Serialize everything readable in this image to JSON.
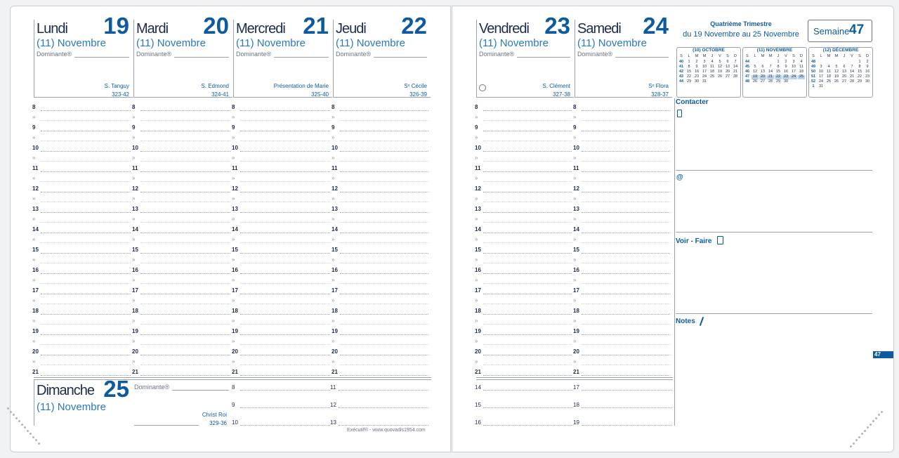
{
  "days": [
    {
      "name": "Lundi",
      "number": "19",
      "month": "(11) Novembre",
      "dominante": "Dominante®",
      "saint": "S. Tanguy",
      "code": "323-42"
    },
    {
      "name": "Mardi",
      "number": "20",
      "month": "(11) Novembre",
      "dominante": "Dominante®",
      "saint": "S. Edmond",
      "code": "324-41"
    },
    {
      "name": "Mercredi",
      "number": "21",
      "month": "(11) Novembre",
      "dominante": "Dominante®",
      "saint": "Présentation de Marie",
      "code": "325-40"
    },
    {
      "name": "Jeudi",
      "number": "22",
      "month": "(11) Novembre",
      "dominante": "Dominante®",
      "saint": "Sᵉ Cécile",
      "code": "326-39"
    },
    {
      "name": "Vendredi",
      "number": "23",
      "month": "(11) Novembre",
      "dominante": "Dominante®",
      "saint": "S. Clément",
      "code": "327-38"
    },
    {
      "name": "Samedi",
      "number": "24",
      "month": "(11) Novembre",
      "dominante": "Dominante®",
      "saint": "Sᵉ Flora",
      "code": "328-37"
    }
  ],
  "sunday": {
    "name": "Dimanche",
    "number": "25",
    "month": "(11) Novembre",
    "dominante": "Dominante®",
    "saint": "Christ Roi",
    "code": "329-36"
  },
  "hours": [
    "8",
    "9",
    "10",
    "11",
    "12",
    "13",
    "14",
    "15",
    "16",
    "17",
    "18",
    "19",
    "20",
    "21"
  ],
  "half_mark": "»",
  "sunday_hours": [
    "8",
    "9",
    "10",
    "11",
    "12",
    "13",
    "14",
    "15",
    "16",
    "17",
    "18",
    "19"
  ],
  "footer": "Exécutif® - www.quovadis1954.com",
  "quarter": {
    "title": "Quatrième Trimestre",
    "range": "du 19 Novembre au 25 Novembre"
  },
  "week": {
    "label": "Semaine",
    "number": "47"
  },
  "mini_calendars": {
    "weekday_header": [
      "S",
      "L",
      "M",
      "M",
      "J",
      "V",
      "S",
      "D"
    ],
    "months": [
      {
        "title": "(10) OCTOBRE",
        "rows": [
          [
            "40",
            "1",
            "2",
            "3",
            "4",
            "5",
            "6",
            "7"
          ],
          [
            "41",
            "8",
            "9",
            "10",
            "11",
            "12",
            "13",
            "14"
          ],
          [
            "42",
            "15",
            "16",
            "17",
            "18",
            "19",
            "20",
            "21"
          ],
          [
            "43",
            "22",
            "23",
            "24",
            "25",
            "26",
            "27",
            "28"
          ],
          [
            "44",
            "29",
            "30",
            "31",
            null,
            null,
            null,
            null
          ]
        ]
      },
      {
        "title": "(11) NOVEMBRE",
        "rows": [
          [
            "44",
            null,
            null,
            null,
            "1",
            "2",
            "3",
            "4"
          ],
          [
            "45",
            "5",
            "6",
            "7",
            "8",
            "9",
            "10",
            "11"
          ],
          [
            "46",
            "12",
            "13",
            "14",
            "15",
            "16",
            "17",
            "18"
          ],
          [
            "47",
            "19",
            "20",
            "21",
            "22",
            "23",
            "24",
            "25"
          ],
          [
            "48",
            "26",
            "27",
            "28",
            "29",
            "30",
            null,
            null
          ]
        ]
      },
      {
        "title": "(12) DÉCEMBRE",
        "rows": [
          [
            "48",
            null,
            null,
            null,
            null,
            null,
            "1",
            "2"
          ],
          [
            "49",
            "3",
            "4",
            "5",
            "6",
            "7",
            "8",
            "9"
          ],
          [
            "50",
            "10",
            "11",
            "12",
            "13",
            "14",
            "15",
            "16"
          ],
          [
            "51",
            "17",
            "18",
            "19",
            "20",
            "21",
            "22",
            "23"
          ],
          [
            "52",
            "24",
            "25",
            "26",
            "27",
            "28",
            "29",
            "30"
          ],
          [
            "1",
            "31",
            null,
            null,
            null,
            null,
            null,
            null
          ]
        ]
      }
    ]
  },
  "sections": {
    "contacter": "Contacter",
    "email": "@",
    "voir_faire": "Voir - Faire",
    "notes": "Notes"
  }
}
